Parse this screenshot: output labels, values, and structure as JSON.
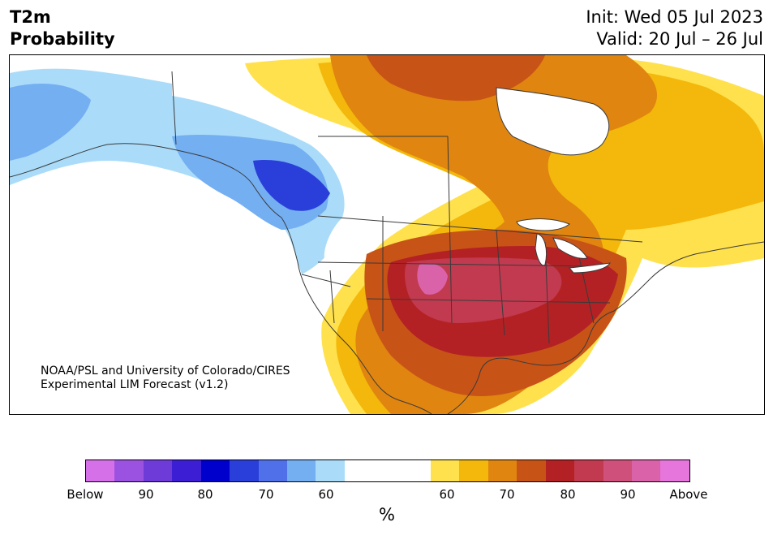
{
  "title": {
    "left_line1": "T2m",
    "left_line2": "Probability",
    "init": "Init: Wed 05 Jul 2023",
    "valid": "Valid: 20 Jul – 26 Jul"
  },
  "credit": {
    "line1": "NOAA/PSL and University of Colorado/CIRES",
    "line2": "Experimental LIM Forecast (v1.2)"
  },
  "colorbar": {
    "colors": [
      "#d670e8",
      "#9c52e0",
      "#6e3bd9",
      "#3c1fd4",
      "#0000cc",
      "#2a3fd9",
      "#4f70e8",
      "#74aff2",
      "#aadcfa",
      "#ffffff",
      "#ffffff",
      "#ffffff",
      "#ffe14d",
      "#f3b80b",
      "#e08510",
      "#c85317",
      "#b32124",
      "#c23a4f",
      "#cf507a",
      "#da62a8",
      "#e675dc"
    ],
    "tick_labels": [
      "Below",
      "90",
      "80",
      "70",
      "60",
      "60",
      "70",
      "80",
      "90",
      "Above"
    ],
    "unit": "%"
  },
  "map_colors": {
    "blue_60": "#aadcfa",
    "blue_70": "#74aff2",
    "blue_75": "#4f70e8",
    "blue_80": "#2a3fd9",
    "yellow_60": "#ffe14d",
    "orange_65": "#f3b80b",
    "orange_70": "#e08510",
    "red_75": "#c85317",
    "red_80": "#b32124",
    "red_85": "#c23a4f",
    "pink_90": "#da62a8",
    "border": "#3a3a3a"
  }
}
